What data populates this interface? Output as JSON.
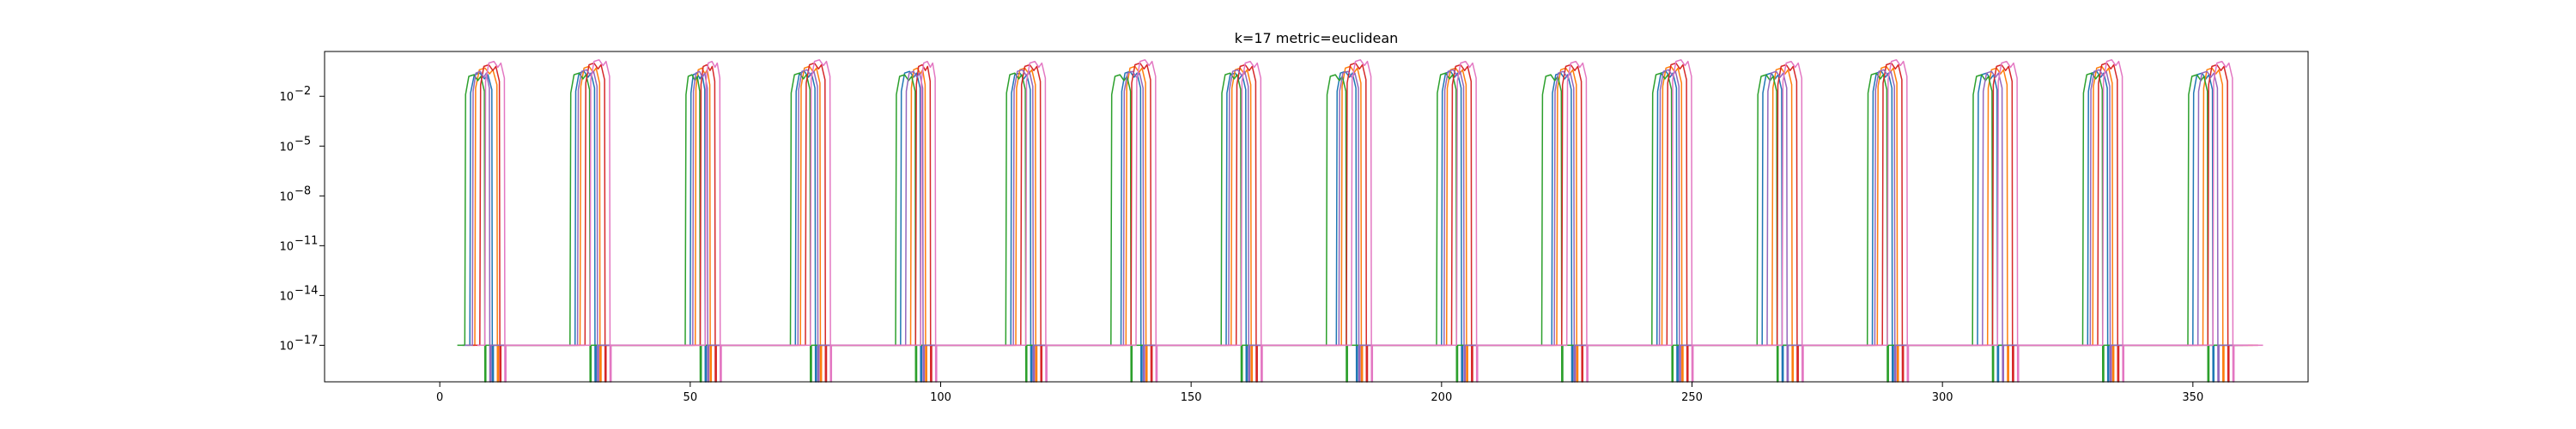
{
  "chart_data": {
    "type": "line",
    "title": "k=17 metric=euclidean",
    "xlabel": "",
    "ylabel": "",
    "xlim": [
      -23,
      373
    ],
    "ylim_exponent": [
      -19.2,
      0.7
    ],
    "y_scale": "log",
    "grid": false,
    "legend": "none",
    "x_ticks": [
      0,
      50,
      100,
      150,
      200,
      250,
      300,
      350
    ],
    "x_tick_labels": [
      "0",
      "50",
      "100",
      "150",
      "200",
      "250",
      "300",
      "350"
    ],
    "y_ticks_exponent": [
      -2,
      -5,
      -8,
      -11,
      -14,
      -17
    ],
    "y_tick_labels": [
      "10",
      "10",
      "10",
      "10",
      "10",
      "10"
    ],
    "y_tick_superscripts": [
      "−2",
      "−5",
      "−8",
      "−11",
      "−14",
      "−17"
    ],
    "low_level_exponent": -17.0,
    "bottom_exponent": -19.2,
    "cluster_starts": [
      4,
      25,
      47,
      68,
      90,
      111,
      133,
      154,
      176,
      197,
      219,
      240,
      262,
      283,
      305,
      326,
      348
    ],
    "series": [
      {
        "color": "#1f77b4",
        "peaks": [
          [
            6,
            10.5,
            -0.6
          ],
          [
            27,
            31,
            -0.5
          ],
          [
            50,
            53,
            -0.6
          ],
          [
            71,
            75,
            -0.5
          ],
          [
            92,
            96,
            -0.5
          ],
          [
            114,
            118,
            -0.6
          ],
          [
            136,
            140,
            -0.5
          ],
          [
            157,
            161,
            -0.6
          ],
          [
            179,
            183,
            -0.5
          ],
          [
            200,
            204,
            -0.5
          ],
          [
            222,
            226,
            -0.6
          ],
          [
            243,
            247,
            -0.5
          ],
          [
            264,
            268,
            -0.6
          ],
          [
            286,
            290,
            -0.5
          ],
          [
            307,
            311,
            -0.6
          ],
          [
            329,
            333,
            -0.5
          ],
          [
            350,
            354,
            -0.6
          ]
        ]
      },
      {
        "color": "#ff7f0e",
        "peaks": [
          [
            7,
            11.5,
            -0.3
          ],
          [
            28,
            32,
            -0.2
          ],
          [
            51,
            54,
            -0.3
          ],
          [
            72,
            76,
            -0.2
          ],
          [
            94,
            97,
            -0.3
          ],
          [
            115,
            119,
            -0.3
          ],
          [
            137,
            141,
            -0.2
          ],
          [
            158,
            162,
            -0.3
          ],
          [
            180,
            184,
            -0.2
          ],
          [
            201,
            205,
            -0.3
          ],
          [
            223,
            227,
            -0.3
          ],
          [
            244,
            248,
            -0.2
          ],
          [
            266,
            270,
            -0.3
          ],
          [
            287,
            291,
            -0.2
          ],
          [
            309,
            313,
            -0.3
          ],
          [
            330,
            334,
            -0.2
          ],
          [
            352,
            356,
            -0.3
          ]
        ]
      },
      {
        "color": "#2ca02c",
        "peaks": [
          [
            5,
            9,
            -0.7
          ],
          [
            26,
            30,
            -0.6
          ],
          [
            49,
            52,
            -0.7
          ],
          [
            70,
            74,
            -0.6
          ],
          [
            91,
            95,
            -0.7
          ],
          [
            113,
            117,
            -0.6
          ],
          [
            134,
            138,
            -0.7
          ],
          [
            156,
            160,
            -0.6
          ],
          [
            177,
            181,
            -0.7
          ],
          [
            199,
            203,
            -0.6
          ],
          [
            220,
            224,
            -0.7
          ],
          [
            242,
            246,
            -0.6
          ],
          [
            263,
            267,
            -0.7
          ],
          [
            285,
            289,
            -0.6
          ],
          [
            306,
            310,
            -0.7
          ],
          [
            328,
            332,
            -0.6
          ],
          [
            349,
            353,
            -0.7
          ]
        ]
      },
      {
        "color": "#d62728",
        "peaks": [
          [
            8,
            12,
            -0.1
          ],
          [
            29,
            33,
            0.0
          ],
          [
            52,
            55,
            -0.1
          ],
          [
            73,
            77,
            0.0
          ],
          [
            95,
            98,
            -0.1
          ],
          [
            116,
            120,
            -0.1
          ],
          [
            138,
            142,
            0.0
          ],
          [
            159,
            163,
            -0.1
          ],
          [
            181,
            185,
            0.0
          ],
          [
            202,
            206,
            -0.1
          ],
          [
            224,
            228,
            -0.1
          ],
          [
            245,
            249,
            0.0
          ],
          [
            267,
            271,
            -0.1
          ],
          [
            288,
            292,
            0.0
          ],
          [
            310,
            314,
            -0.1
          ],
          [
            331,
            335,
            0.0
          ],
          [
            353,
            357,
            -0.1
          ]
        ]
      },
      {
        "color": "#9467bd",
        "peaks": [
          [
            6.5,
            10,
            -0.5
          ],
          [
            27.5,
            31.5,
            -0.4
          ],
          [
            50.5,
            53.5,
            -0.5
          ],
          [
            71.5,
            75.5,
            -0.4
          ],
          [
            93,
            96.5,
            -0.5
          ],
          [
            114.5,
            118.5,
            -0.4
          ],
          [
            136.5,
            140.5,
            -0.5
          ],
          [
            157.5,
            161.5,
            -0.4
          ],
          [
            179.5,
            183.5,
            -0.5
          ],
          [
            200.5,
            204.5,
            -0.4
          ],
          [
            222.5,
            226.5,
            -0.5
          ],
          [
            243.5,
            247.5,
            -0.4
          ],
          [
            265,
            269,
            -0.5
          ],
          [
            286.5,
            290.5,
            -0.4
          ],
          [
            308,
            312,
            -0.5
          ],
          [
            329.5,
            333.5,
            -0.4
          ],
          [
            351,
            355,
            -0.5
          ]
        ]
      },
      {
        "color": "#e377c2",
        "peaks": [
          [
            9,
            13,
            0.1
          ],
          [
            30,
            34,
            0.2
          ],
          [
            53,
            56,
            0.1
          ],
          [
            74,
            78,
            0.2
          ],
          [
            96,
            99,
            0.1
          ],
          [
            117,
            121,
            0.1
          ],
          [
            139,
            143,
            0.2
          ],
          [
            160,
            164,
            0.1
          ],
          [
            182,
            186,
            0.2
          ],
          [
            203,
            207,
            0.1
          ],
          [
            225,
            229,
            0.1
          ],
          [
            246,
            250,
            0.2
          ],
          [
            268,
            272,
            0.1
          ],
          [
            289,
            293,
            0.2
          ],
          [
            311,
            315,
            0.1
          ],
          [
            332,
            336,
            0.2
          ],
          [
            354,
            358,
            0.1
          ]
        ]
      }
    ]
  }
}
